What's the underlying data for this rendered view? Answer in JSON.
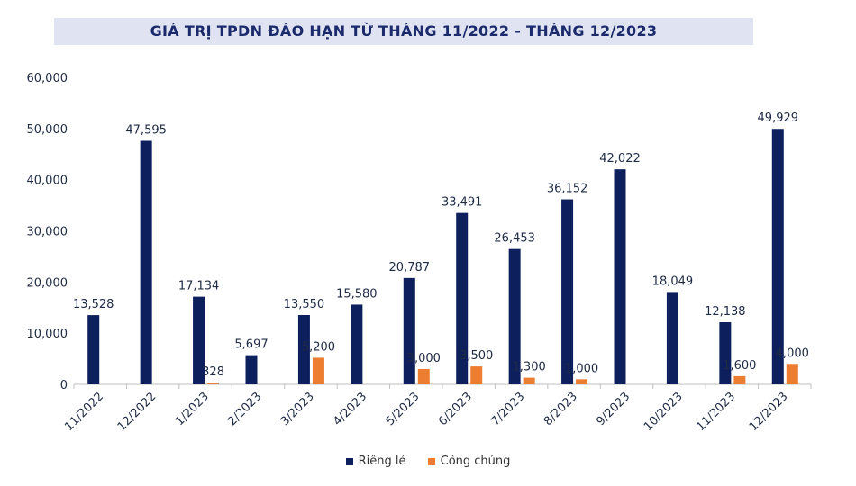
{
  "chart_data": {
    "type": "bar",
    "title": "GIÁ TRỊ TPDN ĐÁO HẠN TỪ THÁNG 11/2022 - THÁNG 12/2023",
    "categories": [
      "11/2022",
      "12/2022",
      "1/2023",
      "2/2023",
      "3/2023",
      "4/2023",
      "5/2023",
      "6/2023",
      "7/2023",
      "8/2023",
      "9/2023",
      "10/2023",
      "11/2023",
      "12/2023"
    ],
    "series": [
      {
        "name": "Riêng lẻ",
        "color": "#0d1f5c",
        "values": [
          13528,
          47595,
          17134,
          5697,
          13550,
          15580,
          20787,
          33491,
          26453,
          36152,
          42022,
          18049,
          12138,
          49929
        ],
        "labels": [
          "13,528",
          "47,595",
          "17,134",
          "5,697",
          "13,550",
          "15,580",
          "20,787",
          "33,491",
          "26,453",
          "36,152",
          "42,022",
          "18,049",
          "12,138",
          "49,929"
        ]
      },
      {
        "name": "Công chúng",
        "color": "#ed7d31",
        "values": [
          null,
          null,
          328,
          null,
          5200,
          null,
          3000,
          3500,
          1300,
          1000,
          null,
          null,
          1600,
          4000
        ],
        "labels": [
          null,
          null,
          "328",
          null,
          "5,200",
          null,
          "3,000",
          "3,500",
          "1,300",
          "1,000",
          null,
          null,
          "1,600",
          "4,000"
        ]
      }
    ],
    "yticks": [
      "0",
      "10,000",
      "20,000",
      "30,000",
      "40,000",
      "50,000",
      "60,000"
    ],
    "ylim": [
      0,
      60000
    ],
    "grid": false,
    "legend_position": "bottom"
  }
}
